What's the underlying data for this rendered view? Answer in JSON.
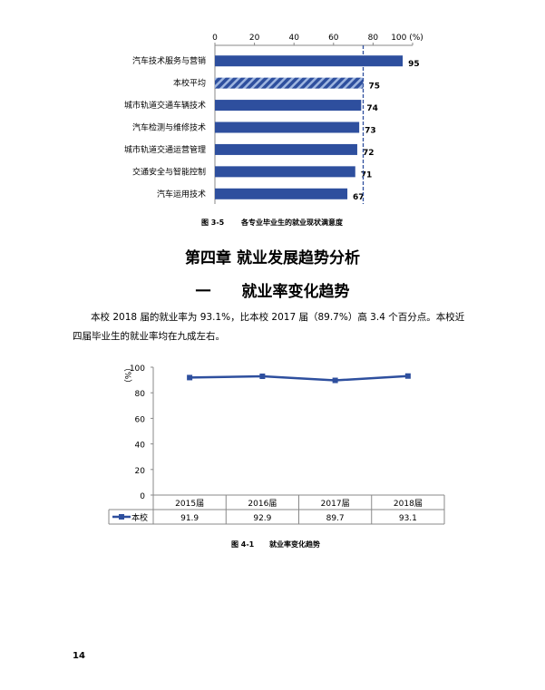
{
  "chart_data": [
    {
      "type": "bar",
      "orientation": "horizontal",
      "categories": [
        "汽车技术服务与营销",
        "本校平均",
        "城市轨道交通车辆技术",
        "汽车检测与维修技术",
        "城市轨道交通运营管理",
        "交通安全与智能控制",
        "汽车运用技术"
      ],
      "values": [
        95,
        75,
        74,
        73,
        72,
        71,
        67
      ],
      "xlim": [
        0,
        100
      ],
      "xticks": [
        "0",
        "20",
        "40",
        "60",
        "80",
        "100 (%)"
      ],
      "reference_line": 75,
      "highlight_category": "本校平均",
      "title": "各专业毕业生的就业现状满意度",
      "figure_label": "图 3-5",
      "colors": {
        "bar": "#2e4f9e",
        "highlight_stripe": "#9fb6e0"
      }
    },
    {
      "type": "line",
      "categories": [
        "2015届",
        "2016届",
        "2017届",
        "2018届"
      ],
      "series": [
        {
          "name": "本校",
          "values": [
            91.9,
            92.9,
            89.7,
            93.1
          ]
        }
      ],
      "values_text": [
        "91.9",
        "92.9",
        "89.7",
        "93.1"
      ],
      "ylim": [
        0,
        100
      ],
      "yticks": [
        "0",
        "20",
        "40",
        "60",
        "80",
        "100"
      ],
      "ylabel": "（%）",
      "title": "就业率变化趋势",
      "figure_label": "图 4-1",
      "colors": {
        "line": "#2e4f9e"
      }
    }
  ],
  "doc": {
    "chapter": "第四章  就业发展趋势分析",
    "section": "一　　就业率变化趋势",
    "paragraph": "本校 2018 届的就业率为 93.1%，比本校 2017 届（89.7%）高 3.4 个百分点。本校近四届毕业生的就业率均在九成左右。",
    "page_number": "14"
  }
}
